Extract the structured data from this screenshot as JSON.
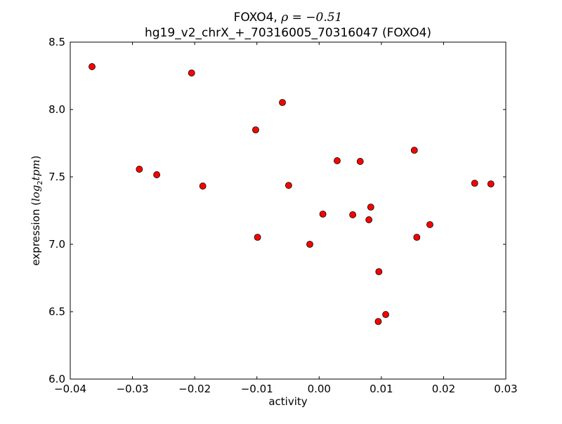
{
  "chart_data": {
    "type": "scatter",
    "title_line1_prefix": "FOXO4, ",
    "title_rho": "ρ = −0.51",
    "title_line2": "hg19_v2_chrX_+_70316005_70316047 (FOXO4)",
    "xlabel": "activity",
    "ylabel_prefix": "expression (",
    "ylabel_math": "log",
    "ylabel_sub": "2",
    "ylabel_math2": "tpm",
    "ylabel_suffix": ")",
    "xlim": [
      -0.04,
      0.03
    ],
    "ylim": [
      6.0,
      8.5
    ],
    "xticks": [
      -0.04,
      -0.03,
      -0.02,
      -0.01,
      0.0,
      0.01,
      0.02,
      0.03
    ],
    "xtick_labels": [
      "−0.04",
      "−0.03",
      "−0.02",
      "−0.01",
      "0.00",
      "0.01",
      "0.02",
      "0.03"
    ],
    "yticks": [
      6.0,
      6.5,
      7.0,
      7.5,
      8.0,
      8.5
    ],
    "ytick_labels": [
      "6.0",
      "6.5",
      "7.0",
      "7.5",
      "8.0",
      "8.5"
    ],
    "grid": false,
    "marker_color": "#ff0000",
    "points": [
      [
        -0.0365,
        8.318
      ],
      [
        -0.0205,
        8.271
      ],
      [
        -0.0059,
        8.052
      ],
      [
        -0.0102,
        7.849
      ],
      [
        -0.0289,
        7.557
      ],
      [
        -0.0261,
        7.516
      ],
      [
        -0.0187,
        7.432
      ],
      [
        -0.0049,
        7.437
      ],
      [
        0.0029,
        7.62
      ],
      [
        0.0066,
        7.615
      ],
      [
        0.0153,
        7.698
      ],
      [
        0.025,
        7.453
      ],
      [
        0.0276,
        7.448
      ],
      [
        0.0006,
        7.224
      ],
      [
        0.0054,
        7.219
      ],
      [
        0.0083,
        7.276
      ],
      [
        0.008,
        7.182
      ],
      [
        0.0178,
        7.146
      ],
      [
        -0.0099,
        7.052
      ],
      [
        -0.0015,
        7.0
      ],
      [
        0.0157,
        7.052
      ],
      [
        0.0096,
        6.797
      ],
      [
        0.0107,
        6.479
      ],
      [
        0.0095,
        6.427
      ]
    ]
  }
}
